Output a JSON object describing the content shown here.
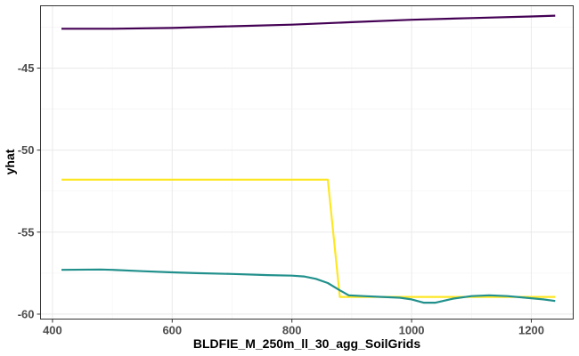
{
  "chart_data": {
    "type": "line",
    "title": "",
    "xlabel": "BLDFIE_M_250m_ll_30_agg_SoilGrids",
    "ylabel": "yhat",
    "xlim": [
      380,
      1270
    ],
    "ylim": [
      -60.3,
      -41.2
    ],
    "x_ticks": [
      400,
      600,
      800,
      1000,
      1200
    ],
    "x_tick_labels": [
      "400",
      "600",
      "800",
      "1000",
      "1200"
    ],
    "y_ticks": [
      -45,
      -50,
      -55,
      -60
    ],
    "y_tick_labels": [
      "-45",
      "-50",
      "-55",
      "-60"
    ],
    "grid": true,
    "legend": "none",
    "series": [
      {
        "color": "#440154",
        "x": [
          415,
          500,
          600,
          700,
          800,
          900,
          1000,
          1100,
          1200,
          1240
        ],
        "y": [
          -42.6,
          -42.6,
          -42.55,
          -42.45,
          -42.35,
          -42.2,
          -42.05,
          -41.95,
          -41.85,
          -41.8
        ]
      },
      {
        "color": "#FDE725",
        "x": [
          415,
          860,
          880,
          1240
        ],
        "y": [
          -51.8,
          -51.8,
          -58.95,
          -58.95
        ]
      },
      {
        "color": "#21908C",
        "x": [
          415,
          480,
          500,
          550,
          600,
          640,
          700,
          760,
          800,
          820,
          840,
          860,
          880,
          895,
          920,
          950,
          980,
          1000,
          1020,
          1040,
          1070,
          1100,
          1130,
          1160,
          1190,
          1220,
          1240
        ],
        "y": [
          -57.3,
          -57.28,
          -57.3,
          -57.38,
          -57.45,
          -57.5,
          -57.55,
          -57.62,
          -57.65,
          -57.7,
          -57.85,
          -58.1,
          -58.55,
          -58.85,
          -58.9,
          -58.95,
          -59.0,
          -59.1,
          -59.3,
          -59.3,
          -59.05,
          -58.9,
          -58.85,
          -58.9,
          -59.0,
          -59.1,
          -59.2
        ]
      }
    ]
  }
}
